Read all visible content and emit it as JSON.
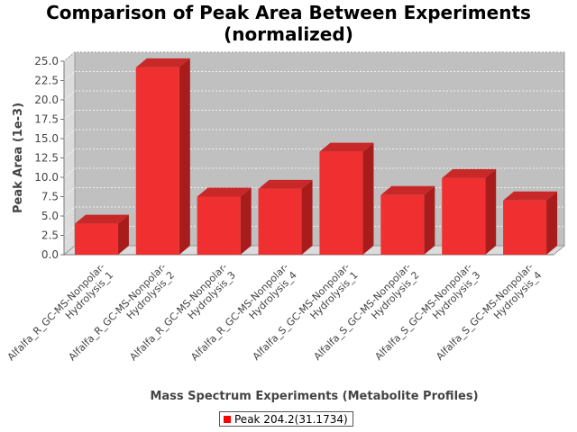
{
  "chart_data": {
    "type": "bar",
    "title_line1": "Comparison of Peak Area Between Experiments",
    "title_line2": "(normalized)",
    "xlabel": "Mass Spectrum Experiments (Metabolite Profiles)",
    "ylabel": "Peak Area (1e-3)",
    "ylim": [
      0,
      25
    ],
    "yticks": [
      "0.0",
      "2.5",
      "5.0",
      "7.5",
      "10.0",
      "12.5",
      "15.0",
      "17.5",
      "20.0",
      "22.5",
      "25.0"
    ],
    "grid": true,
    "legend_position": "bottom",
    "categories": [
      [
        "Alfalfa_R_GC-MS-Nonpolar-",
        "Hydrolysis_1"
      ],
      [
        "Alfalfa_R_GC-MS-Nonpolar-",
        "Hydrolysis_2"
      ],
      [
        "Alfalfa_R_GC-MS-Nonpolar-",
        "Hydrolysis_3"
      ],
      [
        "Alfalfa_R_GC-MS-Nonpolar-",
        "Hydrolysis_4"
      ],
      [
        "Alfalfa_S_GC-MS-Nonpolar-",
        "Hydrolysis_1"
      ],
      [
        "Alfalfa_S_GC-MS-Nonpolar-",
        "Hydrolysis_2"
      ],
      [
        "Alfalfa_S_GC-MS-Nonpolar-",
        "Hydrolysis_3"
      ],
      [
        "Alfalfa_S_GC-MS-Nonpolar-",
        "Hydrolysis_4"
      ]
    ],
    "series": [
      {
        "name": "Peak 204.2(31.1734)",
        "color": "#ff0000",
        "values": [
          4.0,
          24.2,
          7.5,
          8.5,
          13.3,
          7.7,
          9.9,
          7.0
        ]
      }
    ]
  }
}
